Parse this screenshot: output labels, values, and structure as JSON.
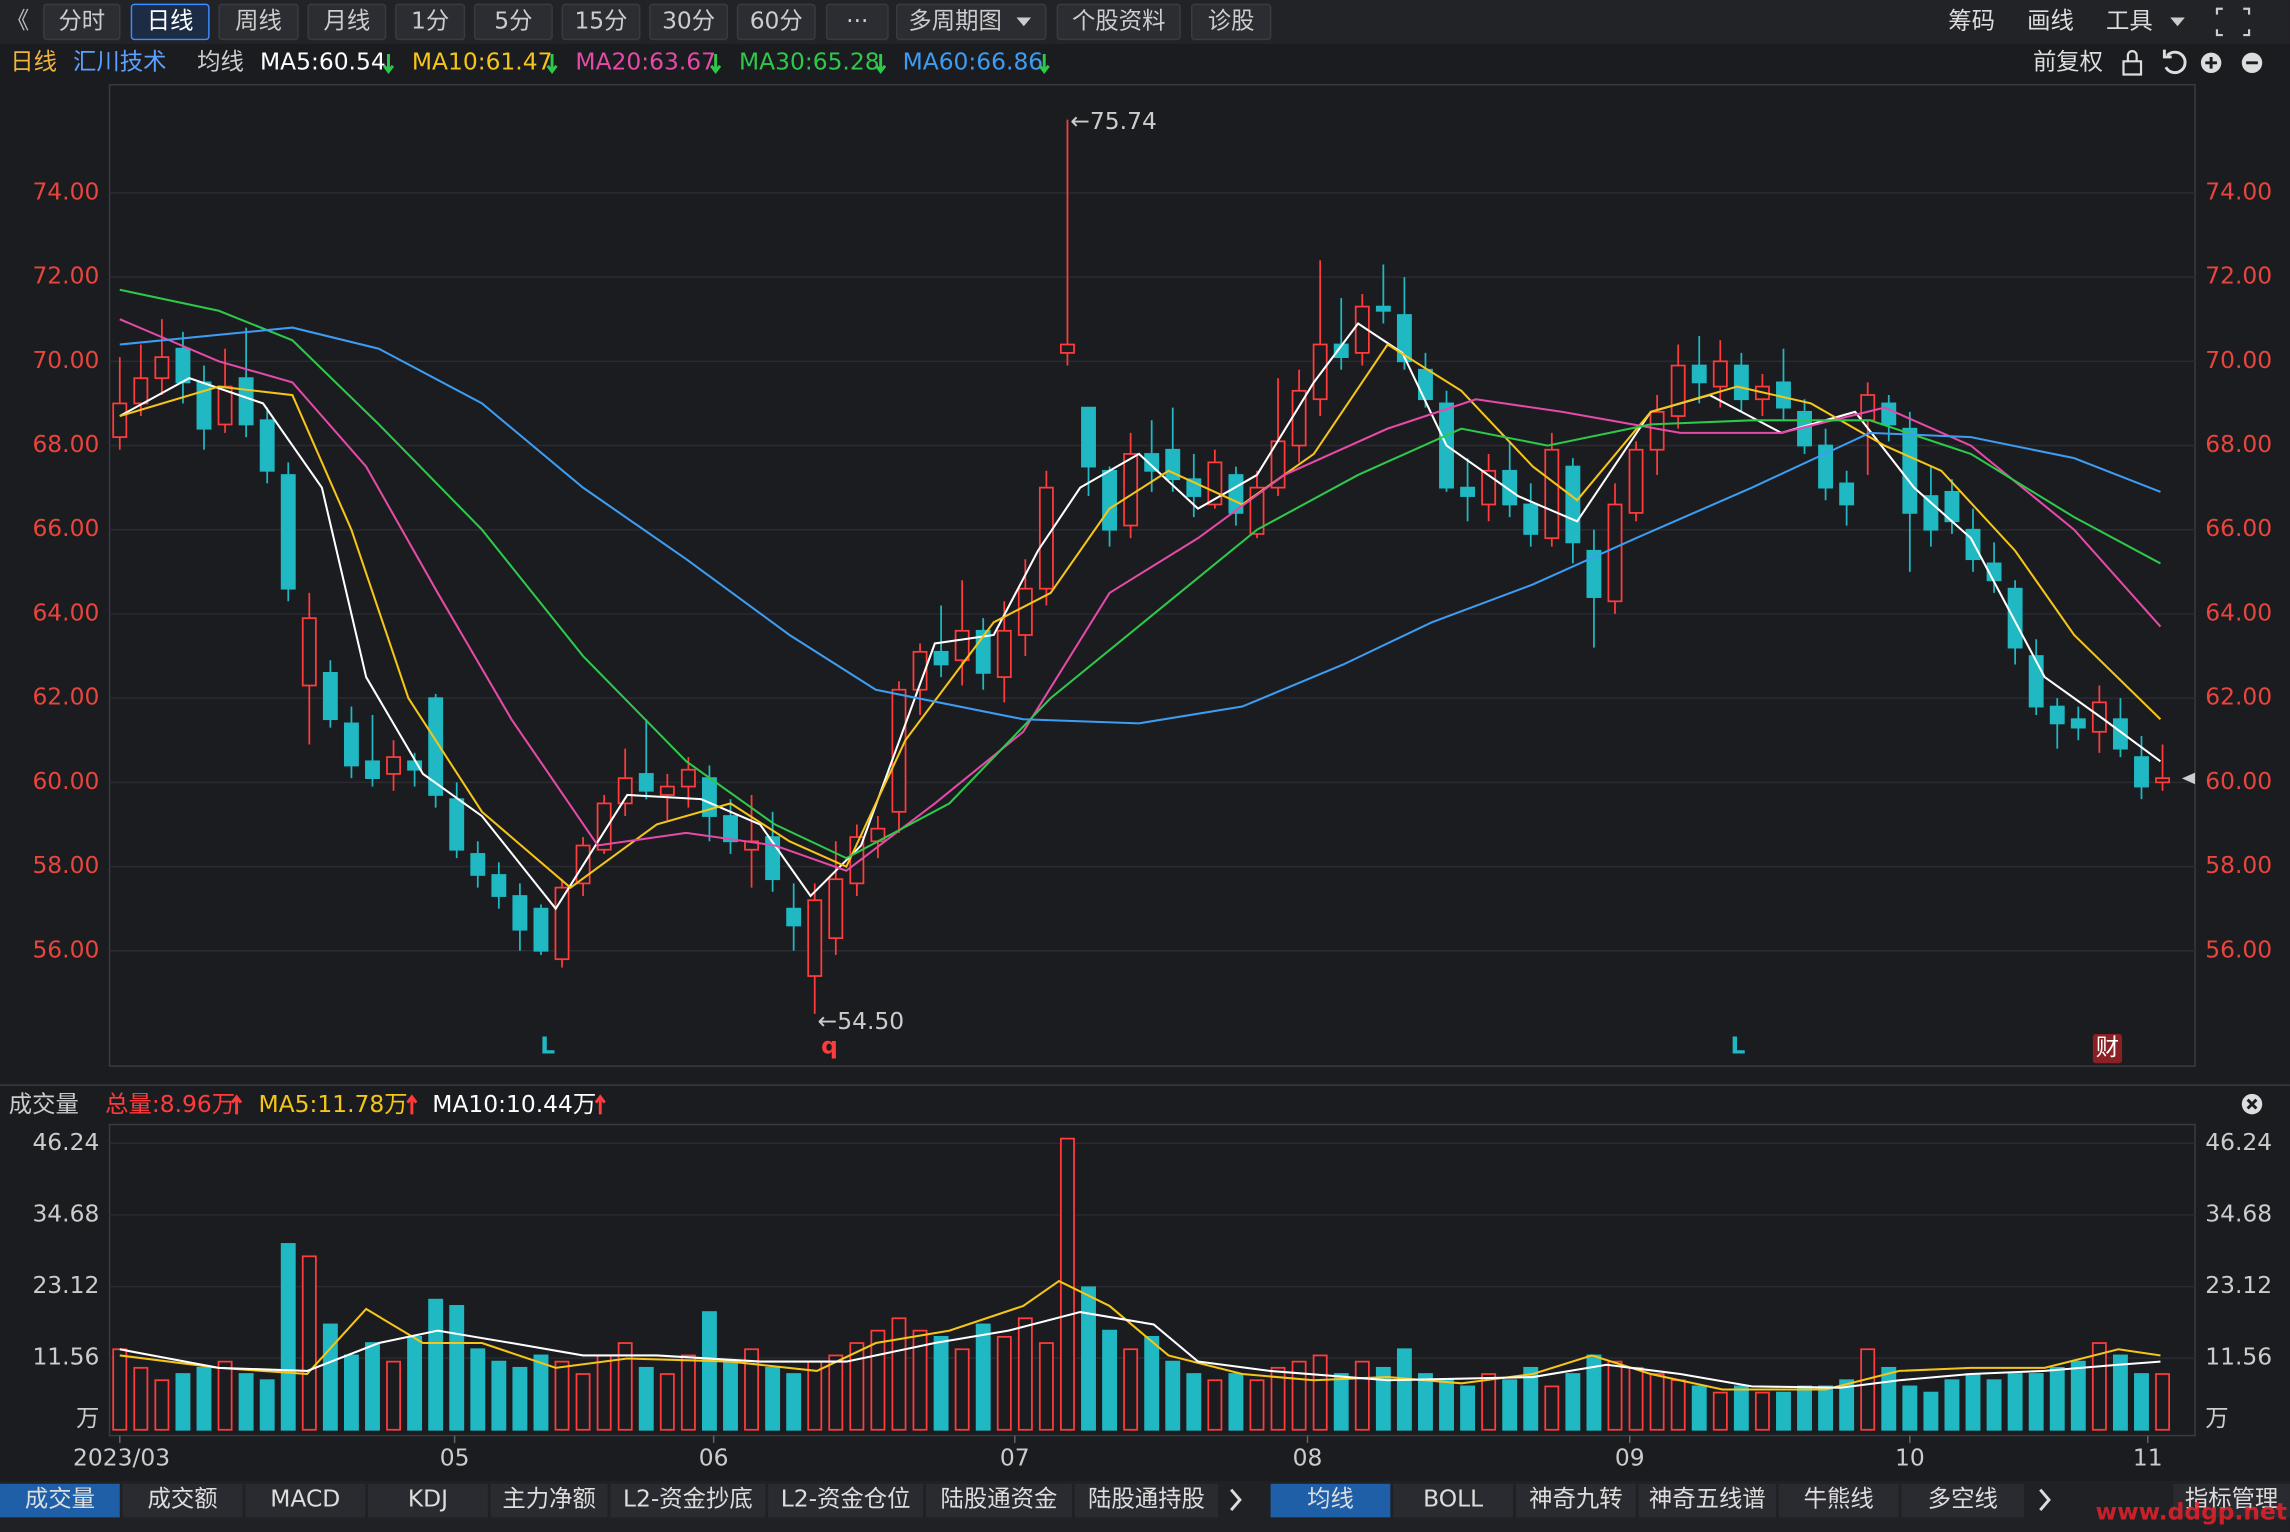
{
  "toolbar": {
    "back": "《",
    "buttons": [
      "分时",
      "日线",
      "周线",
      "月线",
      "1分",
      "5分",
      "15分",
      "30分",
      "60分",
      "···",
      "多周期图",
      "个股资料",
      "诊股"
    ],
    "selected": "日线",
    "right": [
      "筹码",
      "画线",
      "工具"
    ]
  },
  "header": {
    "period": "日线",
    "stock": "汇川技术",
    "indicator": "均线",
    "adjust": "前复权"
  },
  "chart_data": {
    "type": "candlestick",
    "candles": [
      [
        68.2,
        70.1,
        67.9,
        69.0
      ],
      [
        69.0,
        70.4,
        68.7,
        69.6
      ],
      [
        69.6,
        71.0,
        69.2,
        70.1
      ],
      [
        70.3,
        70.7,
        69.0,
        69.5
      ],
      [
        69.5,
        69.9,
        67.9,
        68.4
      ],
      [
        68.5,
        70.3,
        68.3,
        69.4
      ],
      [
        69.6,
        70.8,
        68.2,
        68.5
      ],
      [
        68.6,
        68.9,
        67.1,
        67.4
      ],
      [
        67.3,
        67.6,
        64.3,
        64.6
      ],
      [
        62.3,
        64.5,
        60.9,
        63.9
      ],
      [
        62.6,
        62.9,
        61.3,
        61.5
      ],
      [
        61.4,
        61.8,
        60.1,
        60.4
      ],
      [
        60.5,
        61.6,
        59.9,
        60.1
      ],
      [
        60.2,
        61.0,
        59.8,
        60.6
      ],
      [
        60.5,
        60.7,
        59.9,
        60.3
      ],
      [
        62.0,
        62.1,
        59.4,
        59.7
      ],
      [
        59.6,
        60.0,
        58.2,
        58.4
      ],
      [
        58.3,
        58.6,
        57.5,
        57.8
      ],
      [
        57.8,
        58.1,
        57.0,
        57.3
      ],
      [
        57.3,
        57.6,
        56.0,
        56.5
      ],
      [
        57.0,
        57.1,
        55.9,
        56.0
      ],
      [
        55.8,
        57.7,
        55.6,
        57.5
      ],
      [
        57.6,
        58.7,
        57.3,
        58.5
      ],
      [
        58.4,
        59.7,
        58.3,
        59.5
      ],
      [
        59.5,
        60.8,
        59.2,
        60.1
      ],
      [
        60.2,
        61.5,
        59.6,
        59.8
      ],
      [
        59.7,
        60.2,
        59.1,
        59.9
      ],
      [
        59.9,
        60.6,
        59.4,
        60.3
      ],
      [
        60.1,
        60.4,
        58.6,
        59.2
      ],
      [
        59.2,
        59.6,
        58.3,
        58.6
      ],
      [
        58.4,
        59.7,
        57.5,
        58.6
      ],
      [
        58.7,
        59.3,
        57.4,
        57.7
      ],
      [
        57.0,
        57.6,
        56.0,
        56.6
      ],
      [
        55.4,
        57.6,
        54.5,
        57.2
      ],
      [
        56.3,
        58.6,
        55.9,
        57.7
      ],
      [
        57.6,
        59.0,
        57.3,
        58.7
      ],
      [
        58.6,
        59.2,
        58.2,
        58.9
      ],
      [
        59.3,
        62.4,
        58.8,
        62.2
      ],
      [
        62.2,
        63.3,
        61.6,
        63.1
      ],
      [
        63.1,
        64.2,
        62.5,
        62.8
      ],
      [
        62.9,
        64.8,
        62.3,
        63.6
      ],
      [
        63.6,
        63.9,
        62.2,
        62.6
      ],
      [
        62.5,
        64.3,
        61.9,
        63.6
      ],
      [
        63.5,
        65.3,
        63.0,
        64.6
      ],
      [
        64.6,
        67.4,
        64.2,
        67.0
      ],
      [
        70.2,
        75.74,
        69.9,
        70.4
      ],
      [
        68.9,
        68.9,
        66.8,
        67.5
      ],
      [
        67.4,
        67.5,
        65.6,
        66.0
      ],
      [
        66.1,
        68.3,
        65.8,
        67.8
      ],
      [
        67.8,
        68.6,
        66.9,
        67.4
      ],
      [
        67.9,
        68.9,
        66.9,
        67.2
      ],
      [
        67.2,
        67.8,
        66.3,
        66.8
      ],
      [
        66.6,
        67.9,
        66.5,
        67.6
      ],
      [
        67.3,
        67.5,
        66.1,
        66.4
      ],
      [
        65.9,
        67.4,
        65.8,
        67.0
      ],
      [
        67.0,
        69.6,
        66.8,
        68.1
      ],
      [
        68.0,
        69.8,
        67.6,
        69.3
      ],
      [
        69.1,
        72.4,
        68.7,
        70.4
      ],
      [
        70.4,
        71.5,
        69.8,
        70.1
      ],
      [
        70.2,
        71.6,
        69.9,
        71.3
      ],
      [
        71.3,
        72.3,
        70.9,
        71.2
      ],
      [
        71.1,
        72.0,
        69.8,
        70.0
      ],
      [
        69.8,
        70.2,
        68.9,
        69.1
      ],
      [
        69.0,
        69.3,
        66.9,
        67.0
      ],
      [
        67.0,
        67.7,
        66.2,
        66.8
      ],
      [
        66.6,
        67.8,
        66.2,
        67.4
      ],
      [
        67.4,
        68.1,
        66.3,
        66.6
      ],
      [
        66.6,
        67.1,
        65.6,
        65.9
      ],
      [
        65.8,
        68.3,
        65.6,
        67.9
      ],
      [
        67.5,
        67.7,
        65.2,
        65.7
      ],
      [
        65.5,
        66.0,
        63.2,
        64.4
      ],
      [
        64.3,
        67.1,
        64.0,
        66.6
      ],
      [
        66.4,
        68.1,
        66.2,
        67.9
      ],
      [
        67.9,
        69.2,
        67.3,
        68.8
      ],
      [
        68.7,
        70.4,
        68.4,
        69.9
      ],
      [
        69.9,
        70.6,
        69.0,
        69.5
      ],
      [
        69.4,
        70.5,
        68.9,
        70.0
      ],
      [
        69.9,
        70.2,
        68.8,
        69.1
      ],
      [
        69.1,
        69.7,
        68.7,
        69.4
      ],
      [
        69.5,
        70.3,
        68.6,
        68.9
      ],
      [
        68.8,
        69.1,
        67.8,
        68.0
      ],
      [
        68.0,
        68.4,
        66.7,
        67.0
      ],
      [
        67.1,
        67.4,
        66.1,
        66.6
      ],
      [
        68.6,
        69.5,
        67.3,
        69.2
      ],
      [
        69.0,
        69.2,
        68.1,
        68.5
      ],
      [
        68.4,
        68.8,
        65.0,
        66.4
      ],
      [
        66.8,
        67.5,
        65.6,
        66.0
      ],
      [
        66.9,
        67.2,
        65.9,
        66.2
      ],
      [
        66.0,
        66.5,
        65.0,
        65.3
      ],
      [
        65.2,
        65.7,
        64.5,
        64.8
      ],
      [
        64.6,
        64.8,
        62.8,
        63.2
      ],
      [
        63.0,
        63.4,
        61.6,
        61.8
      ],
      [
        61.8,
        62.0,
        60.8,
        61.4
      ],
      [
        61.5,
        61.8,
        61.0,
        61.3
      ],
      [
        61.2,
        62.3,
        60.7,
        61.9
      ],
      [
        61.5,
        62.0,
        60.6,
        60.8
      ],
      [
        60.6,
        61.1,
        59.6,
        59.9
      ],
      [
        60.0,
        60.9,
        59.8,
        60.1
      ]
    ],
    "ylim": [
      53.26,
      76.57
    ],
    "yticks": [
      {
        "value": 56,
        "label": "56.00"
      },
      {
        "value": 58,
        "label": "58.00"
      },
      {
        "value": 60,
        "label": "60.00"
      },
      {
        "value": 62,
        "label": "62.00"
      },
      {
        "value": 64,
        "label": "64.00"
      },
      {
        "value": 66,
        "label": "66.00"
      },
      {
        "value": 68,
        "label": "68.00"
      },
      {
        "value": 70,
        "label": "70.00"
      },
      {
        "value": 72,
        "label": "72.00"
      },
      {
        "value": 74,
        "label": "74.00"
      }
    ],
    "up_color": "#ff3b3b",
    "down_color": "#1fb8c3",
    "ma_lines": [
      {
        "name": "MA5:60.54",
        "color": "#ffffff",
        "x": [
          0,
          3.3,
          6.8,
          9.6,
          11.7,
          14.4,
          17.2,
          20.7,
          24.1,
          27.6,
          30.4,
          32.8,
          35.2,
          38.7,
          41.5,
          43.6,
          45.6,
          48.4,
          51.2,
          54,
          56.7,
          58.8,
          60.9,
          63,
          66.4,
          69.2,
          72.7,
          75.5,
          78.9,
          82.4,
          85.2,
          87.9,
          91.4,
          94.2,
          96.9
        ],
        "values": [
          68.7,
          69.6,
          69,
          67,
          62.5,
          60.2,
          59.2,
          57,
          59.7,
          59.6,
          59,
          57.3,
          58.5,
          63.3,
          63.5,
          65.5,
          67,
          67.8,
          66.5,
          67.3,
          69.5,
          70.9,
          70.2,
          68,
          66.8,
          66.2,
          68.8,
          69.2,
          68.3,
          68.8,
          67,
          65.8,
          62.5,
          61.5,
          60.5
        ]
      },
      {
        "name": "MA10:61.47",
        "color": "#f5c518",
        "x": [
          0,
          4.7,
          8.2,
          11,
          13.7,
          17.2,
          21.4,
          25.5,
          29,
          31.8,
          34.5,
          37.3,
          41.5,
          44.2,
          47,
          49.8,
          53.3,
          56.7,
          60.2,
          63.7,
          67.1,
          69.2,
          72.7,
          76.8,
          80.3,
          83.8,
          86.5,
          90,
          92.8,
          96.9
        ],
        "values": [
          68.7,
          69.4,
          69.2,
          66,
          62,
          59.3,
          57.5,
          59,
          59.5,
          58.6,
          58,
          61,
          63.8,
          64.5,
          66.5,
          67.4,
          66.6,
          67.8,
          70.4,
          69.3,
          67.5,
          66.7,
          68.8,
          69.4,
          69,
          68,
          67.4,
          65.5,
          63.5,
          61.5
        ]
      },
      {
        "name": "MA20:63.67",
        "color": "#e54aa8",
        "x": [
          0,
          4.7,
          8.2,
          11.7,
          15.1,
          18.6,
          22.7,
          26.9,
          31.1,
          34.5,
          38.7,
          42.9,
          47,
          51.2,
          55.3,
          60.2,
          64.4,
          68.5,
          74.1,
          78.9,
          83.8,
          87.9,
          92.8,
          96.9
        ],
        "values": [
          71,
          70,
          69.5,
          67.5,
          64.5,
          61.5,
          58.5,
          58.8,
          58.5,
          57.9,
          59.5,
          61.2,
          64.5,
          65.8,
          67.3,
          68.4,
          69.1,
          68.8,
          68.3,
          68.3,
          68.9,
          68,
          66,
          63.7
        ]
      },
      {
        "name": "MA30:65.28",
        "color": "#2ec94a",
        "x": [
          0,
          4.7,
          8.2,
          12.3,
          17.2,
          22,
          26.9,
          31.1,
          34.5,
          39.4,
          44.2,
          49.1,
          54,
          58.8,
          63.7,
          67.8,
          72.7,
          77.5,
          83.1,
          87.9,
          92.8,
          96.9
        ],
        "values": [
          71.7,
          71.2,
          70.5,
          68.5,
          66,
          63,
          60.5,
          59,
          58.2,
          59.5,
          62,
          64,
          66,
          67.3,
          68.4,
          68,
          68.5,
          68.6,
          68.6,
          67.8,
          66.3,
          65.2
        ]
      },
      {
        "name": "MA60:66.86",
        "color": "#3d9df3",
        "x": [
          0,
          8.2,
          12.3,
          17.2,
          22,
          26.9,
          31.8,
          35.9,
          42.9,
          48.4,
          53.3,
          58.1,
          62.3,
          67.1,
          72,
          77.5,
          83.1,
          87.9,
          92.8,
          96.9
        ],
        "values": [
          70.4,
          70.8,
          70.3,
          69,
          67,
          65.3,
          63.5,
          62.2,
          61.5,
          61.4,
          61.8,
          62.8,
          63.8,
          64.7,
          65.8,
          67,
          68.3,
          68.2,
          67.7,
          66.9
        ]
      }
    ],
    "high_label": "←75.74",
    "low_label": "←54.50",
    "markers": [
      "L",
      "q",
      "L",
      "财"
    ],
    "xticks": [
      {
        "value": 0,
        "label": "2023/03"
      },
      {
        "value": 15.9,
        "label": "05"
      },
      {
        "value": 28.2,
        "label": "06"
      },
      {
        "value": 42.5,
        "label": "07"
      },
      {
        "value": 56.4,
        "label": "08"
      },
      {
        "value": 71.7,
        "label": "09"
      },
      {
        "value": 85,
        "label": "10"
      },
      {
        "value": 96.3,
        "label": "11"
      }
    ]
  },
  "volume_data": {
    "type": "bar",
    "title": "成交量",
    "total": "总量:8.96万",
    "unit": "万",
    "values": [
      13,
      10,
      8,
      9,
      10,
      11,
      9,
      8,
      30,
      28,
      17,
      12,
      14,
      11,
      15,
      21,
      20,
      13,
      11,
      10,
      12,
      11,
      9,
      12,
      14,
      10,
      9,
      12,
      19,
      11,
      13,
      10,
      9,
      11,
      12,
      14,
      16,
      18,
      16,
      15,
      13,
      17,
      15,
      18,
      14,
      47,
      23,
      16,
      13,
      15,
      11,
      9,
      8,
      9,
      8,
      10,
      11,
      12,
      9,
      11,
      10,
      13,
      9,
      8,
      7,
      9,
      8,
      10,
      7,
      9,
      12,
      11,
      10,
      9,
      8,
      7,
      6,
      7,
      6,
      6,
      7,
      7,
      8,
      13,
      10,
      7,
      6,
      8,
      9,
      8,
      9,
      9,
      10,
      11,
      14,
      12,
      9,
      9
    ],
    "ylim": [
      0,
      48.8
    ],
    "yticks": [
      11.56,
      23.12,
      34.68,
      46.24
    ],
    "ma_lines": [
      {
        "name": "MA5:11.78万",
        "color": "#f5c518",
        "x": [
          0,
          4.7,
          8.9,
          11.7,
          14.4,
          17.2,
          20.7,
          24.1,
          29,
          33.1,
          35.9,
          39.4,
          42.9,
          44.6,
          47,
          49.8,
          53.3,
          56.7,
          60.2,
          63.7,
          67.1,
          69.9,
          72.7,
          76.1,
          81,
          84.5,
          87.9,
          91.4,
          94.9,
          96.9
        ],
        "values": [
          12,
          10,
          9,
          19.5,
          14,
          14,
          10,
          11.5,
          11,
          9.5,
          14,
          16,
          20,
          24,
          20,
          12,
          9,
          8,
          8.5,
          7.5,
          9,
          12,
          9,
          6.5,
          6.5,
          9.5,
          10,
          10,
          13,
          12
        ]
      },
      {
        "name": "MA10:10.44万",
        "color": "#ffffff",
        "x": [
          0,
          4.7,
          8.9,
          12.3,
          15.1,
          18.6,
          22,
          25.5,
          30.4,
          34.5,
          38.7,
          42.2,
          45.6,
          49.1,
          51.2,
          54.6,
          60.2,
          67.1,
          70.6,
          74.1,
          77.5,
          81.7,
          84.5,
          87.9,
          91.4,
          94.9,
          96.9
        ],
        "values": [
          13,
          10,
          9.5,
          14,
          16,
          14,
          12,
          12,
          11,
          11,
          14,
          16,
          19,
          17,
          11,
          9.5,
          8,
          8.5,
          10.5,
          9,
          7,
          6.8,
          8,
          9,
          9.5,
          10.5,
          11
        ]
      }
    ]
  },
  "tabs_left": [
    "成交量",
    "成交额",
    "MACD",
    "KDJ",
    "主力净额",
    "L2-资金抄底",
    "L2-资金仓位",
    "陆股通资金",
    "陆股通持股"
  ],
  "tabs_right": [
    "均线",
    "BOLL",
    "神奇九转",
    "神奇五线谱",
    "牛熊线",
    "多空线"
  ],
  "tab_manage": "指标管理",
  "watermark": "www.ddgp.net"
}
